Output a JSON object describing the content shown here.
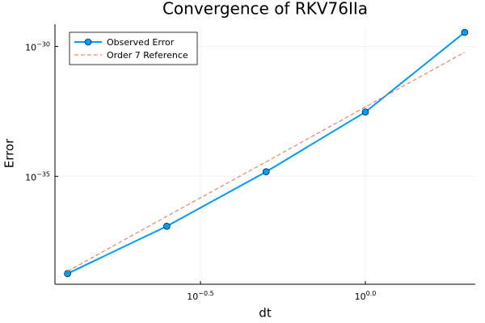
{
  "chart_data": {
    "type": "line",
    "title": "Convergence of RKV76IIa",
    "xlabel": "dt",
    "ylabel": "Error",
    "x": [
      0.125,
      0.25,
      0.5,
      1,
      2
    ],
    "series": [
      {
        "name": "Observed Error",
        "color": "#009af9",
        "values": [
          1.8e-39,
          1.2e-37,
          1.5e-35,
          3e-33,
          3.5e-30
        ],
        "marker": true,
        "dash": false
      },
      {
        "name": "Order 7 Reference",
        "color": "#e26f46",
        "values": [
          2.2e-39,
          2.9e-37,
          3.6e-35,
          4.7e-33,
          6e-31
        ],
        "marker": false,
        "dash": true
      }
    ],
    "xscale": "log",
    "yscale": "log",
    "xlim": [
      0.1145,
      2.154
    ],
    "ylim": [
      7e-40,
      7.2e-30
    ],
    "xticks": [
      {
        "value": 0.31623,
        "label": "10",
        "exponent": "−0.5"
      },
      {
        "value": 1,
        "label": "10",
        "exponent": "0.0"
      }
    ],
    "yticks": [
      {
        "value": 1e-35,
        "label": "10",
        "exponent": "−35"
      },
      {
        "value": 1e-30,
        "label": "10",
        "exponent": "−30"
      }
    ],
    "grid": true,
    "legend": "top-left"
  }
}
